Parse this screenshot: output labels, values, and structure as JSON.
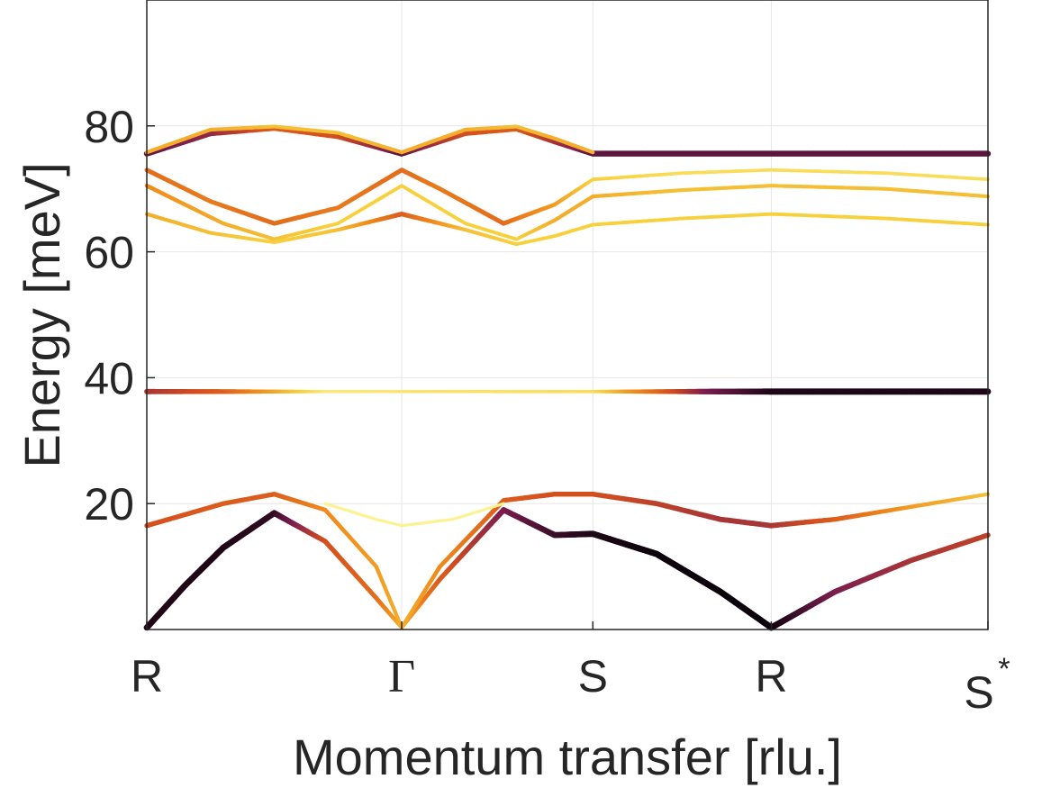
{
  "chart_data": {
    "type": "line",
    "title": "",
    "xlabel": "Momentum transfer [rlu.]",
    "ylabel": "Energy [meV]",
    "x_ticks": [
      "R",
      "Γ",
      "S",
      "R",
      "S"
    ],
    "x_tick_superscript_last": "*",
    "xlim": [
      0,
      3.3
    ],
    "x_tick_positions": [
      0,
      1,
      1.75,
      2.45,
      3.3
    ],
    "ylim": [
      0,
      100
    ],
    "y_ticks": [
      20,
      40,
      60,
      80
    ],
    "grid": true,
    "colormap": [
      "#fffdb0",
      "#f7d13d",
      "#f08a1b",
      "#d44e1e",
      "#7a1d50",
      "#000004"
    ],
    "series": [
      {
        "x": [
          0,
          0.15,
          0.3,
          0.5,
          0.7,
          0.9,
          1.0,
          1.15,
          1.4,
          1.6,
          1.75,
          2.0,
          2.25,
          2.45,
          2.7,
          3.0,
          3.3
        ],
        "y": [
          0.3,
          7,
          13,
          18.5,
          14,
          5,
          0.3,
          8,
          19,
          15,
          15.2,
          12,
          6,
          0.3,
          6,
          11,
          15
        ],
        "intensity": [
          0.95,
          0.95,
          0.95,
          0.92,
          0.6,
          0.5,
          0.3,
          0.55,
          0.8,
          0.9,
          0.95,
          0.98,
          0.98,
          0.98,
          0.8,
          0.7,
          0.65
        ]
      },
      {
        "x": [
          0,
          0.3,
          0.5,
          0.7,
          0.9,
          1.0,
          1.15,
          1.4,
          1.6,
          1.75,
          2.0,
          2.25,
          2.45,
          2.7,
          3.0,
          3.3
        ],
        "y": [
          16.5,
          20,
          21.5,
          19,
          10,
          0.3,
          10,
          20.5,
          21.5,
          21.5,
          20,
          17.5,
          16.5,
          17.5,
          19.5,
          21.5
        ],
        "intensity": [
          0.6,
          0.55,
          0.55,
          0.4,
          0.35,
          0.3,
          0.4,
          0.55,
          0.6,
          0.6,
          0.65,
          0.7,
          0.7,
          0.55,
          0.35,
          0.25
        ]
      },
      {
        "x": [
          0.7,
          0.9,
          1.0,
          1.2,
          1.4
        ],
        "y": [
          20,
          17.5,
          16.5,
          17.5,
          20
        ],
        "intensity": [
          0.05,
          0.05,
          0.05,
          0.05,
          0.05
        ]
      },
      {
        "x": [
          0,
          0.3,
          0.7,
          1.75,
          2.2,
          2.45,
          3.3
        ],
        "y": [
          37.8,
          37.8,
          37.8,
          37.8,
          37.8,
          37.8,
          37.8
        ],
        "intensity": [
          0.7,
          0.55,
          0.1,
          0.15,
          0.8,
          0.95,
          0.95
        ]
      },
      {
        "x": [
          0,
          0.25,
          0.5,
          0.75,
          1.0,
          1.15,
          1.4,
          1.6,
          1.75,
          2.1,
          2.45,
          2.9,
          3.3
        ],
        "y": [
          73,
          68,
          64.5,
          67,
          73,
          70,
          64.5,
          67.5,
          71.5,
          72.5,
          73,
          72.5,
          71.5
        ],
        "intensity": [
          0.5,
          0.45,
          0.5,
          0.45,
          0.5,
          0.45,
          0.5,
          0.35,
          0.2,
          0.15,
          0.15,
          0.15,
          0.15
        ]
      },
      {
        "x": [
          0,
          0.3,
          0.5,
          0.75,
          1.0,
          1.25,
          1.45,
          1.6,
          1.75,
          2.1,
          2.45,
          2.9,
          3.3
        ],
        "y": [
          70.5,
          64.5,
          62,
          64.5,
          70.5,
          64.5,
          62,
          65,
          68.8,
          69.8,
          70.5,
          70,
          68.8
        ],
        "intensity": [
          0.4,
          0.3,
          0.25,
          0.2,
          0.2,
          0.2,
          0.2,
          0.3,
          0.3,
          0.25,
          0.25,
          0.25,
          0.25
        ]
      },
      {
        "x": [
          0,
          0.25,
          0.5,
          0.75,
          1.0,
          1.25,
          1.45,
          1.6,
          1.75,
          2.1,
          2.45,
          2.9,
          3.3
        ],
        "y": [
          66,
          63,
          61.5,
          63.5,
          66,
          63.5,
          61.2,
          62.5,
          64.3,
          65.3,
          66,
          65.3,
          64.3
        ],
        "intensity": [
          0.3,
          0.25,
          0.2,
          0.25,
          0.55,
          0.25,
          0.2,
          0.2,
          0.2,
          0.2,
          0.2,
          0.2,
          0.2
        ]
      },
      {
        "x": [
          0,
          0.25,
          0.5,
          0.75,
          1.0,
          1.25,
          1.45,
          1.6,
          1.75,
          3.3
        ],
        "y": [
          75.6,
          78.8,
          79.6,
          78.3,
          75.6,
          78.8,
          79.5,
          77.5,
          75.6,
          75.6
        ],
        "intensity": [
          0.85,
          0.75,
          0.55,
          0.6,
          0.85,
          0.6,
          0.55,
          0.7,
          0.85,
          0.85
        ]
      },
      {
        "x": [
          0,
          0.25,
          0.5,
          0.75,
          1.0,
          1.25,
          1.45,
          1.6,
          1.75
        ],
        "y": [
          75.8,
          79.4,
          79.9,
          78.9,
          75.8,
          79.4,
          79.9,
          78,
          75.8
        ],
        "intensity": [
          0.3,
          0.3,
          0.25,
          0.25,
          0.3,
          0.3,
          0.25,
          0.3,
          0.3
        ]
      }
    ]
  }
}
